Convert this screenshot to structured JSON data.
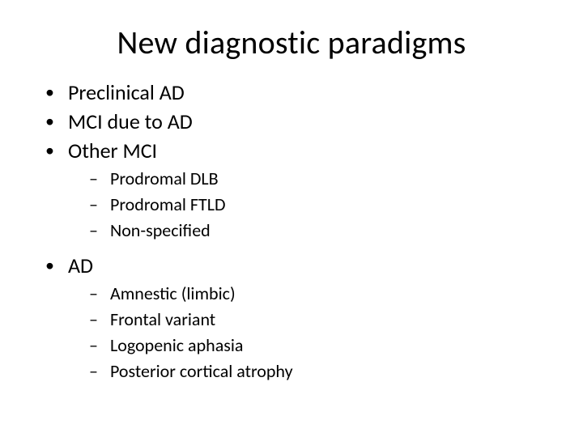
{
  "title": "New diagnostic paradigms",
  "bullets": {
    "l1": [
      {
        "text": "Preclinical AD"
      },
      {
        "text": "MCI due to AD"
      },
      {
        "text": "Other MCI"
      }
    ],
    "other_mci_sub": [
      {
        "text": "Prodromal DLB"
      },
      {
        "text": "Prodromal FTLD"
      },
      {
        "text": "Non-specified"
      }
    ],
    "ad_header": "AD",
    "ad_sub": [
      {
        "text": "Amnestic (limbic)"
      },
      {
        "text": "Frontal variant"
      },
      {
        "text": "Logopenic aphasia"
      },
      {
        "text": "Posterior cortical atrophy"
      }
    ]
  },
  "style": {
    "bg_color": "#ffffff",
    "text_color": "#000000",
    "title_fontsize": 40,
    "l1_fontsize": 26,
    "l2_fontsize": 22,
    "l1_bullet": "•",
    "l2_bullet": "–"
  }
}
